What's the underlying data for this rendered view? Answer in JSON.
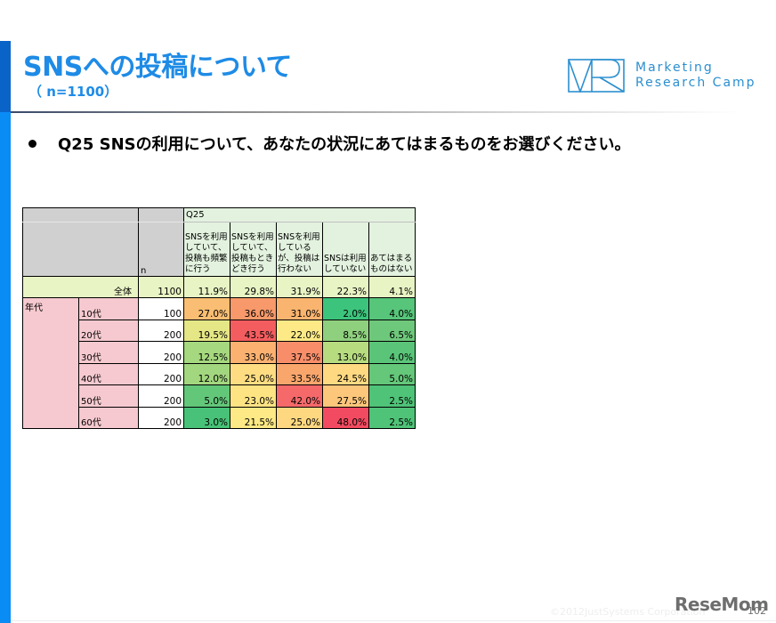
{
  "slide": {
    "title": "SNSへの投稿について",
    "subtitle": "（ n=1100）",
    "question": "Q25 SNSの利用について、あなたの状況にあてはまるものをお選びください。",
    "accent_color": "#1e8be6",
    "sidebar_colors": {
      "top": "#0a64c8",
      "bottom": "#0a8cf5"
    }
  },
  "logo": {
    "icon": "vrc-logo-icon",
    "line1": "Marketing",
    "line2": "Research Camp",
    "color": "#2b8fcf"
  },
  "table": {
    "question_label": "Q25",
    "n_label": "n",
    "columns": [
      "SNSを利用していて、投稿も頻繁に行う",
      "SNSを利用していて、投稿もときどき行う",
      "SNSを利用しているが、投稿は行わない",
      "SNSは利用していない",
      "あてはまるものはない"
    ],
    "group_label": "年代",
    "total": {
      "label": "全体",
      "n": "1100",
      "values": [
        "11.9%",
        "29.8%",
        "31.9%",
        "22.3%",
        "4.1%"
      ]
    },
    "rows": [
      {
        "label": "10代",
        "n": "100",
        "values": [
          "27.0%",
          "36.0%",
          "31.0%",
          "2.0%",
          "4.0%"
        ],
        "colors": [
          "#f9be73",
          "#f7996a",
          "#f9b46f",
          "#3cc47c",
          "#57c57a"
        ]
      },
      {
        "label": "20代",
        "n": "200",
        "values": [
          "19.5%",
          "43.5%",
          "22.0%",
          "8.5%",
          "6.5%"
        ],
        "colors": [
          "#e5e685",
          "#f45d5f",
          "#fde986",
          "#8ed07e",
          "#6ec87b"
        ]
      },
      {
        "label": "30代",
        "n": "200",
        "values": [
          "12.5%",
          "33.0%",
          "37.5%",
          "13.0%",
          "4.0%"
        ],
        "colors": [
          "#a6d87f",
          "#fbb170",
          "#f88e69",
          "#b7dc80",
          "#5ac579"
        ]
      },
      {
        "label": "40代",
        "n": "200",
        "values": [
          "12.0%",
          "25.0%",
          "33.5%",
          "24.5%",
          "5.0%"
        ],
        "colors": [
          "#a3d77f",
          "#fedd82",
          "#f9a66c",
          "#fed982",
          "#64c77a"
        ]
      },
      {
        "label": "50代",
        "n": "200",
        "values": [
          "5.0%",
          "23.0%",
          "42.0%",
          "27.5%",
          "2.5%"
        ],
        "colors": [
          "#63c77a",
          "#fee383",
          "#f5696a",
          "#fdc77b",
          "#4fc378"
        ]
      },
      {
        "label": "60代",
        "n": "200",
        "values": [
          "3.0%",
          "21.5%",
          "25.0%",
          "48.0%",
          "2.5%"
        ],
        "colors": [
          "#48c278",
          "#fde985",
          "#fed881",
          "#f24b61",
          "#4fc378"
        ]
      }
    ]
  },
  "footer": {
    "copyright": "©2012JustSystems Corporation",
    "watermark": "ReseMom",
    "page_number": "102"
  }
}
